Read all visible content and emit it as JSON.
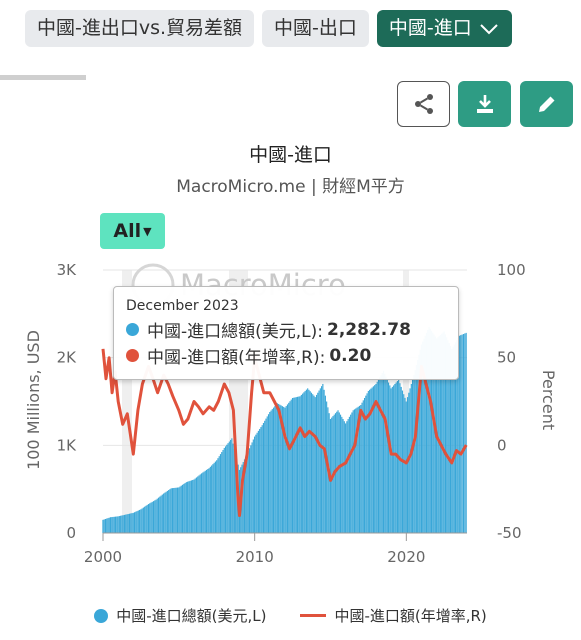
{
  "tabs": [
    {
      "label": "中國-進出口vs.貿易差額"
    },
    {
      "label": "中國-出口"
    },
    {
      "label": "中國-進口"
    }
  ],
  "chart": {
    "title": "中國-進口",
    "subtitle": "MacroMicro.me | 財經M平方",
    "range_label": "All",
    "watermark": "MacroMicro"
  },
  "tooltip": {
    "date": "December 2023",
    "series1_label": "中國-進口總額(美元,L):",
    "series1_value": "2,282.78",
    "series2_label": "中國-進口額(年增率,R):",
    "series2_value": "0.20"
  },
  "legend": {
    "series1": "中國-進口總額(美元,L)",
    "series2": "中國-進口額(年增率,R)"
  },
  "colors": {
    "bars": "#3aa7d8",
    "line": "#e0523c",
    "accent": "#2e9c84",
    "tab_active": "#1d6b58"
  },
  "chart_data": {
    "type": "bar",
    "xlabel": "",
    "ylabel": "100 Millions, USD",
    "y2label": "Percent",
    "xlim": [
      2000,
      2024
    ],
    "ylim": [
      0,
      3000
    ],
    "y2lim": [
      -50,
      100
    ],
    "x_ticks": [
      "2000",
      "2010",
      "2020"
    ],
    "y_ticks": [
      "0",
      "1K",
      "2K",
      "3K"
    ],
    "y2_ticks": [
      "-50",
      "0",
      "50",
      "100"
    ],
    "series": [
      {
        "name": "中國-進口總額(美元,L)",
        "type": "bar",
        "axis": "left",
        "x": [
          2000,
          2000.5,
          2001,
          2001.5,
          2002,
          2002.5,
          2003,
          2003.5,
          2004,
          2004.5,
          2005,
          2005.5,
          2006,
          2006.5,
          2007,
          2007.5,
          2008,
          2008.5,
          2009,
          2009.5,
          2010,
          2010.5,
          2011,
          2011.5,
          2012,
          2012.5,
          2013,
          2013.5,
          2014,
          2014.5,
          2015,
          2015.5,
          2016,
          2016.5,
          2017,
          2017.5,
          2018,
          2018.5,
          2019,
          2019.5,
          2020,
          2020.5,
          2021,
          2021.5,
          2022,
          2022.5,
          2023,
          2023.5,
          2023.95
        ],
        "values": [
          150,
          180,
          190,
          210,
          230,
          270,
          330,
          380,
          450,
          510,
          520,
          580,
          610,
          680,
          740,
          830,
          970,
          1080,
          720,
          900,
          1100,
          1230,
          1380,
          1480,
          1430,
          1540,
          1560,
          1650,
          1550,
          1700,
          1300,
          1400,
          1250,
          1400,
          1460,
          1620,
          1700,
          1850,
          1650,
          1750,
          1500,
          1800,
          2150,
          2350,
          2220,
          2300,
          2100,
          2250,
          2282.78
        ]
      },
      {
        "name": "中國-進口額(年增率,R)",
        "type": "line",
        "axis": "right",
        "x": [
          2000,
          2000.2,
          2000.4,
          2000.6,
          2000.8,
          2001,
          2001.3,
          2001.6,
          2002,
          2002.3,
          2002.6,
          2003,
          2003.3,
          2003.6,
          2004,
          2004.3,
          2004.6,
          2005,
          2005.3,
          2005.6,
          2006,
          2006.3,
          2006.6,
          2007,
          2007.3,
          2007.6,
          2008,
          2008.3,
          2008.6,
          2008.9,
          2009,
          2009.2,
          2009.5,
          2009.8,
          2010,
          2010.3,
          2010.6,
          2011,
          2011.3,
          2011.6,
          2012,
          2012.3,
          2012.6,
          2013,
          2013.3,
          2013.6,
          2014,
          2014.3,
          2014.6,
          2015,
          2015.3,
          2015.6,
          2016,
          2016.3,
          2016.6,
          2017,
          2017.3,
          2017.6,
          2018,
          2018.3,
          2018.6,
          2019,
          2019.3,
          2019.6,
          2020,
          2020.3,
          2020.6,
          2021,
          2021.3,
          2021.6,
          2022,
          2022.3,
          2022.6,
          2023,
          2023.3,
          2023.6,
          2023.95
        ],
        "values": [
          55,
          38,
          50,
          30,
          42,
          25,
          12,
          18,
          -5,
          20,
          35,
          45,
          38,
          30,
          40,
          35,
          28,
          20,
          12,
          15,
          25,
          22,
          18,
          22,
          20,
          25,
          35,
          30,
          20,
          -30,
          -40,
          -20,
          -5,
          30,
          50,
          40,
          30,
          30,
          25,
          20,
          5,
          -2,
          3,
          10,
          5,
          8,
          5,
          0,
          -2,
          -20,
          -15,
          -12,
          -10,
          -5,
          0,
          20,
          15,
          18,
          25,
          20,
          15,
          -5,
          -5,
          -8,
          -10,
          -5,
          5,
          45,
          35,
          25,
          5,
          0,
          -5,
          -10,
          -3,
          -5,
          0.2
        ]
      }
    ]
  }
}
